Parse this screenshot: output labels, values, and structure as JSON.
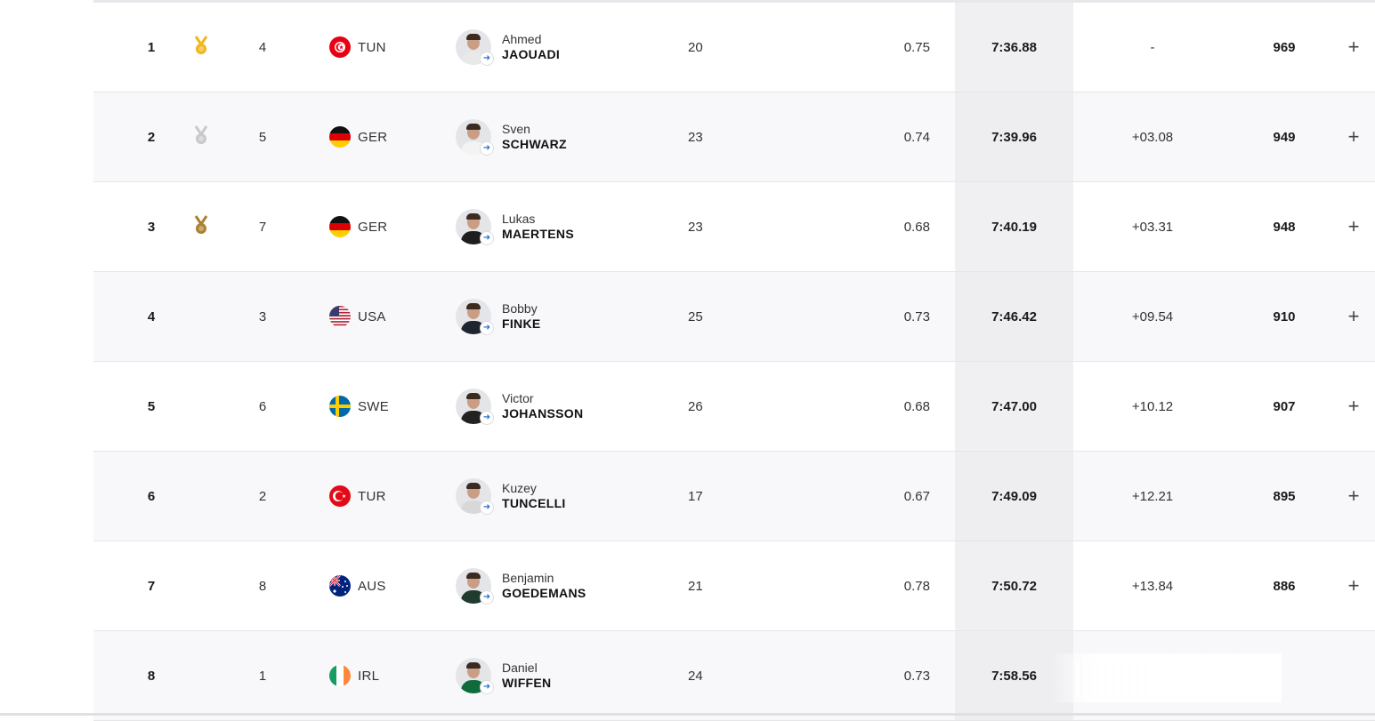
{
  "results": [
    {
      "rank": "1",
      "medal": "gold",
      "lane": "4",
      "nation": "TUN",
      "first": "Ahmed",
      "last": "JAOUADI",
      "age": "20",
      "reaction": "0.75",
      "time": "7:36.88",
      "diff": "-",
      "points": "969"
    },
    {
      "rank": "2",
      "medal": "silver",
      "lane": "5",
      "nation": "GER",
      "first": "Sven",
      "last": "SCHWARZ",
      "age": "23",
      "reaction": "0.74",
      "time": "7:39.96",
      "diff": "+03.08",
      "points": "949"
    },
    {
      "rank": "3",
      "medal": "bronze",
      "lane": "7",
      "nation": "GER",
      "first": "Lukas",
      "last": "MAERTENS",
      "age": "23",
      "reaction": "0.68",
      "time": "7:40.19",
      "diff": "+03.31",
      "points": "948"
    },
    {
      "rank": "4",
      "medal": "",
      "lane": "3",
      "nation": "USA",
      "first": "Bobby",
      "last": "FINKE",
      "age": "25",
      "reaction": "0.73",
      "time": "7:46.42",
      "diff": "+09.54",
      "points": "910"
    },
    {
      "rank": "5",
      "medal": "",
      "lane": "6",
      "nation": "SWE",
      "first": "Victor",
      "last": "JOHANSSON",
      "age": "26",
      "reaction": "0.68",
      "time": "7:47.00",
      "diff": "+10.12",
      "points": "907"
    },
    {
      "rank": "6",
      "medal": "",
      "lane": "2",
      "nation": "TUR",
      "first": "Kuzey",
      "last": "TUNCELLI",
      "age": "17",
      "reaction": "0.67",
      "time": "7:49.09",
      "diff": "+12.21",
      "points": "895"
    },
    {
      "rank": "7",
      "medal": "",
      "lane": "8",
      "nation": "AUS",
      "first": "Benjamin",
      "last": "GOEDEMANS",
      "age": "21",
      "reaction": "0.78",
      "time": "7:50.72",
      "diff": "+13.84",
      "points": "886"
    },
    {
      "rank": "8",
      "medal": "",
      "lane": "1",
      "nation": "IRL",
      "first": "Daniel",
      "last": "WIFFEN",
      "age": "24",
      "reaction": "0.73",
      "time": "7:58.56",
      "diff": "",
      "points": ""
    }
  ],
  "expand_symbol": "+",
  "avatar_link_symbol": "➜",
  "colors": {
    "gold": "#f2b51c",
    "silver": "#c9c9cc",
    "bronze": "#a9812f",
    "time_column_bg": "#eeeef0",
    "row_stripe": "#f8f8fa"
  }
}
